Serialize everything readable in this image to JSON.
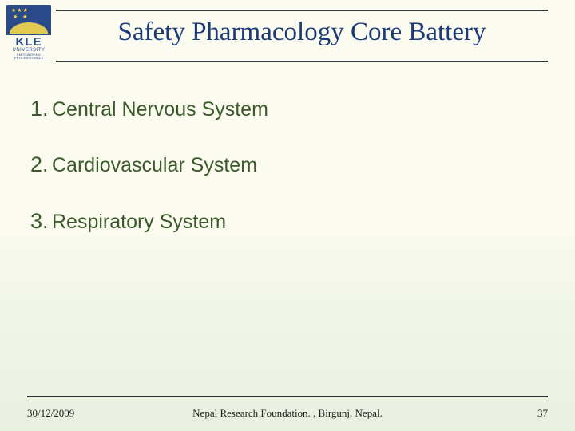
{
  "logo": {
    "name_line1": "KLE",
    "name_line2": "UNIVERSITY",
    "tagline": "EMPOWERING PROFESSIONALS"
  },
  "title": "Safety Pharmacology Core Battery",
  "items": [
    {
      "num": "1.",
      "text": "Central Nervous System"
    },
    {
      "num": "2.",
      "text": "Cardiovascular System"
    },
    {
      "num": "3.",
      "text": "Respiratory System"
    }
  ],
  "footer": {
    "date": "30/12/2009",
    "center": "Nepal Research Foundation. , Birgunj, Nepal.",
    "page": "37"
  },
  "colors": {
    "title_color": "#1a3a7a",
    "body_text_color": "#3a5a2a",
    "rule_color": "#333333",
    "logo_blue": "#2a4a8a",
    "logo_gold": "#f5d84a",
    "bg_top": "#fcfbf0",
    "bg_bottom": "#e8f0e0"
  },
  "typography": {
    "title_font": "Garamond/Georgia serif",
    "title_size_pt": 25,
    "body_font": "Arial/Helvetica sans-serif",
    "body_num_size_pt": 20,
    "body_text_size_pt": 19,
    "footer_font": "Garamond/Georgia serif",
    "footer_size_pt": 10
  }
}
